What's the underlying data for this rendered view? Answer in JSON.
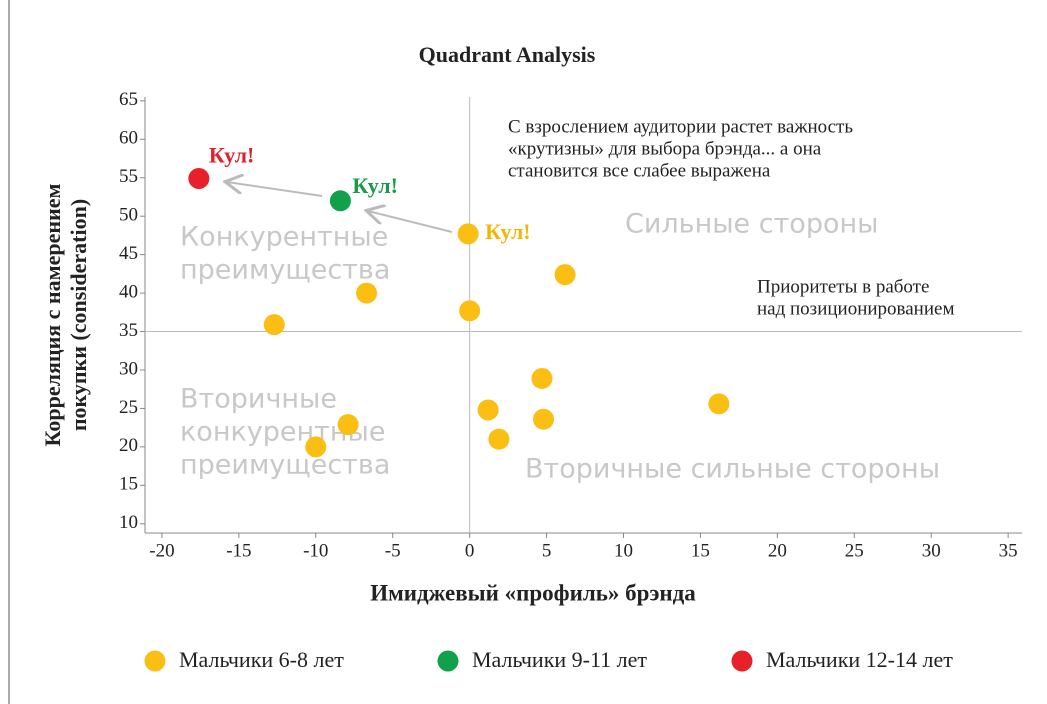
{
  "chart_data": {
    "type": "scatter",
    "title": "Quadrant Analysis",
    "x_label": "Имиджевый «профиль» брэнда",
    "y_label": [
      "Корреляция с намерением",
      "покупки (consideration)"
    ],
    "xlim": [
      -21.1,
      35.9
    ],
    "xticks": [
      -20,
      -15,
      -10,
      -5,
      0,
      5,
      10,
      15,
      20,
      25,
      30,
      35
    ],
    "ylim": [
      8.8,
      65.5
    ],
    "yticks": [
      10,
      15,
      20,
      25,
      30,
      35,
      40,
      45,
      50,
      55,
      60,
      65
    ],
    "x_divider": 0,
    "y_divider": 35,
    "series": [
      {
        "name": "Мальчики 6-8 лет",
        "color": "#fbbf14",
        "x": [
          -0.1,
          6.2,
          -6.7,
          0,
          -12.7,
          4.7,
          1.2,
          4.8,
          16.2,
          -7.9,
          1.9,
          -10
        ],
        "values": [
          47.7,
          42.4,
          40,
          37.7,
          35.9,
          28.9,
          24.8,
          23.6,
          25.6,
          22.9,
          21,
          20
        ]
      },
      {
        "name": "Мальчики 9-11 лет",
        "color": "#12a14b",
        "x": [
          -8.4
        ],
        "values": [
          52
        ]
      },
      {
        "name": "Мальчики 12-14 лет",
        "color": "#e8202a",
        "x": [
          -17.6
        ],
        "values": [
          54.9
        ]
      }
    ],
    "annotations": [
      {
        "text": "Кул!",
        "color": "#f2b600"
      },
      {
        "text": "Кул!",
        "color": "#1a9a4a"
      },
      {
        "text": "Кул!",
        "color": "#e0202a"
      }
    ],
    "quadrant_labels": [
      [
        "Конкурентные",
        "преимущества"
      ],
      [
        "Сильные стороны"
      ],
      [
        "Вторичные",
        "конкурентные",
        "преимущества"
      ],
      [
        "Вторичные сильные стороны"
      ]
    ],
    "notes": [
      [
        "С взрослением аудитории растет важность",
        "«крутизны» для выбора брэнда... а она",
        "становится все слабее выражена"
      ],
      [
        "Приоритеты в работе",
        "над позиционированием"
      ]
    ]
  }
}
